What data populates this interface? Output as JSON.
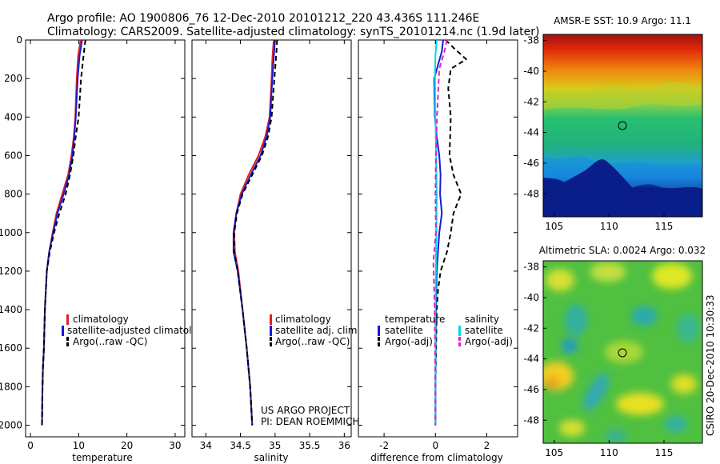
{
  "header": {
    "title_line1": "Argo profile: AO 1900806_76 12-Dec-2010 20101212_220 43.436S 111.246E",
    "title_line2": "Climatology: CARS2009. Satellite-adjusted climatology: synTS_20101214.nc (1.9d later)"
  },
  "credit": {
    "line1": "US ARGO PROJECT",
    "line2": "PI: DEAN ROEMMICH"
  },
  "stamp": "CSIRO 20-Dec-2010 10:30:33",
  "chart_data": [
    {
      "type": "line",
      "name": "temperature",
      "xlabel": "temperature",
      "xlim": [
        -1,
        32
      ],
      "xticks": [
        0,
        10,
        20,
        30
      ],
      "ylim": [
        2060,
        0
      ],
      "yticks": [
        0,
        200,
        400,
        600,
        800,
        1000,
        1200,
        1400,
        1600,
        1800,
        2000
      ],
      "legend": [
        "climatology",
        "satellite-adjusted climatology",
        "Argo(..raw -QC)"
      ],
      "legend_position": "lower-right",
      "series": [
        {
          "name": "climatology",
          "color": "#e02020",
          "dash": "",
          "x": [
            10.4,
            9.9,
            9.6,
            9.3,
            9.0,
            8.5,
            7.8,
            6.6,
            5.4,
            4.6,
            3.9,
            3.4,
            3.0,
            2.8,
            2.6,
            2.5,
            2.4
          ],
          "y": [
            0,
            80,
            200,
            400,
            500,
            600,
            700,
            800,
            900,
            1000,
            1100,
            1200,
            1400,
            1600,
            1700,
            1800,
            2000
          ]
        },
        {
          "name": "satellite-adjusted climatology",
          "color": "#1a1ad4",
          "dash": "",
          "x": [
            10.7,
            10.2,
            9.8,
            9.4,
            9.1,
            8.7,
            8.0,
            6.9,
            5.6,
            4.7,
            3.9,
            3.4,
            3.0,
            2.8,
            2.6,
            2.5,
            2.4
          ],
          "y": [
            0,
            80,
            200,
            400,
            500,
            600,
            700,
            800,
            900,
            1000,
            1100,
            1200,
            1400,
            1600,
            1700,
            1800,
            2000
          ]
        },
        {
          "name": "Argo(..raw -QC)",
          "color": "#000000",
          "dash": "6,4",
          "x": [
            11.4,
            11.1,
            10.5,
            10.0,
            9.4,
            8.9,
            8.2,
            7.3,
            6.0,
            4.9,
            4.0,
            3.4,
            3.0,
            2.8,
            2.6,
            2.5,
            2.4
          ],
          "y": [
            0,
            60,
            200,
            400,
            500,
            600,
            700,
            800,
            900,
            1000,
            1100,
            1200,
            1400,
            1600,
            1700,
            1800,
            2000
          ]
        }
      ]
    },
    {
      "type": "line",
      "name": "salinity",
      "xlabel": "salinity",
      "xlim": [
        33.8,
        36.1
      ],
      "xticks": [
        34,
        34.5,
        35,
        35.5,
        36
      ],
      "xticklabels": [
        "34",
        "34.5",
        "35",
        "35.5",
        "36"
      ],
      "ylim": [
        2060,
        0
      ],
      "legend": [
        "climatology",
        "satellite adj. clim.",
        "Argo(..raw -QC)"
      ],
      "legend_position": "lower-right",
      "series": [
        {
          "name": "climatology",
          "color": "#e02020",
          "dash": "",
          "x": [
            34.98,
            34.96,
            34.95,
            34.92,
            34.86,
            34.76,
            34.62,
            34.5,
            34.44,
            34.41,
            34.42,
            34.47,
            34.53,
            34.59,
            34.64,
            34.67
          ],
          "y": [
            0,
            100,
            200,
            400,
            500,
            600,
            700,
            800,
            900,
            1000,
            1100,
            1200,
            1400,
            1600,
            1800,
            2000
          ]
        },
        {
          "name": "satellite adj. clim.",
          "color": "#1a1ad4",
          "dash": "",
          "x": [
            35.0,
            34.98,
            34.96,
            34.93,
            34.88,
            34.79,
            34.65,
            34.52,
            34.44,
            34.4,
            34.4,
            34.46,
            34.53,
            34.59,
            34.64,
            34.67
          ],
          "y": [
            0,
            100,
            200,
            400,
            500,
            600,
            700,
            800,
            900,
            1000,
            1100,
            1200,
            1400,
            1600,
            1800,
            2000
          ]
        },
        {
          "name": "Argo(..raw -QC)",
          "color": "#000000",
          "dash": "6,4",
          "x": [
            35.03,
            35.02,
            34.99,
            34.95,
            34.9,
            34.81,
            34.67,
            34.53,
            34.45,
            34.41,
            34.41,
            34.46,
            34.53,
            34.59,
            34.64,
            34.67
          ],
          "y": [
            0,
            60,
            200,
            400,
            500,
            600,
            700,
            800,
            900,
            1000,
            1100,
            1200,
            1400,
            1600,
            1800,
            2000
          ]
        }
      ]
    },
    {
      "type": "line",
      "name": "difference",
      "xlabel": "difference from climatology",
      "xlim": [
        -3,
        3.2
      ],
      "xticks": [
        -2,
        0,
        2
      ],
      "ylim": [
        2060,
        0
      ],
      "legend": [
        "temperature",
        "satellite",
        "Argo(-adj)",
        "salinity",
        "satellite",
        "Argo(-adj)"
      ],
      "legend_position": "lower",
      "series": [
        {
          "name": "temperature satellite",
          "color": "#1a1ad4",
          "dash": "",
          "x": [
            0.3,
            0.25,
            -0.05,
            -0.02,
            0.05,
            0.15,
            0.2,
            0.18,
            0.25,
            0.15,
            0.1,
            0.05,
            0.02,
            0.0,
            0.0
          ],
          "y": [
            0,
            60,
            200,
            400,
            500,
            600,
            700,
            800,
            900,
            1000,
            1100,
            1200,
            1400,
            1800,
            2000
          ]
        },
        {
          "name": "temperature Argo(-adj)",
          "color": "#000000",
          "dash": "6,4",
          "x": [
            0.4,
            0.7,
            1.2,
            0.6,
            0.5,
            0.6,
            0.55,
            0.7,
            1.0,
            0.7,
            0.6,
            0.45,
            0.2,
            0.1,
            0.05,
            0.0,
            0.0
          ],
          "y": [
            0,
            40,
            100,
            150,
            250,
            400,
            600,
            700,
            800,
            900,
            1000,
            1100,
            1200,
            1300,
            1400,
            1800,
            2000
          ]
        },
        {
          "name": "salinity satellite",
          "color": "#00d8e8",
          "dash": "",
          "x": [
            0.05,
            0.0,
            -0.02,
            0.0,
            0.03,
            0.05,
            0.04,
            0.02,
            0.0,
            0.0,
            0.0
          ],
          "y": [
            0,
            80,
            200,
            400,
            600,
            800,
            1000,
            1200,
            1400,
            1800,
            2000
          ]
        },
        {
          "name": "salinity Argo(-adj)",
          "color": "#e020d0",
          "dash": "6,4",
          "x": [
            0.45,
            0.35,
            0.15,
            0.06,
            0.02,
            0.0,
            0.02,
            -0.08,
            -0.03,
            0.0,
            0.0
          ],
          "y": [
            0,
            60,
            150,
            400,
            600,
            800,
            1000,
            1150,
            1400,
            1800,
            2000
          ]
        }
      ]
    },
    {
      "type": "heatmap",
      "name": "sst",
      "title": "AMSR-E SST: 10.9 Argo: 11.1",
      "xlim": [
        104,
        118.5
      ],
      "ylim": [
        -49.5,
        -37.6
      ],
      "xticks": [
        105,
        110,
        115
      ],
      "yticks": [
        -38,
        -40,
        -42,
        -44,
        -46,
        -48
      ],
      "marker": {
        "lon": 111.246,
        "lat": -43.436
      }
    },
    {
      "type": "heatmap",
      "name": "sla",
      "title": "Altimetric SLA: 0.0024 Argo: 0.032",
      "xlim": [
        104,
        118.5
      ],
      "ylim": [
        -49.5,
        -37.6
      ],
      "xticks": [
        105,
        110,
        115
      ],
      "yticks": [
        -38,
        -40,
        -42,
        -44,
        -46,
        -48
      ],
      "marker": {
        "lon": 111.246,
        "lat": -43.436
      }
    }
  ]
}
